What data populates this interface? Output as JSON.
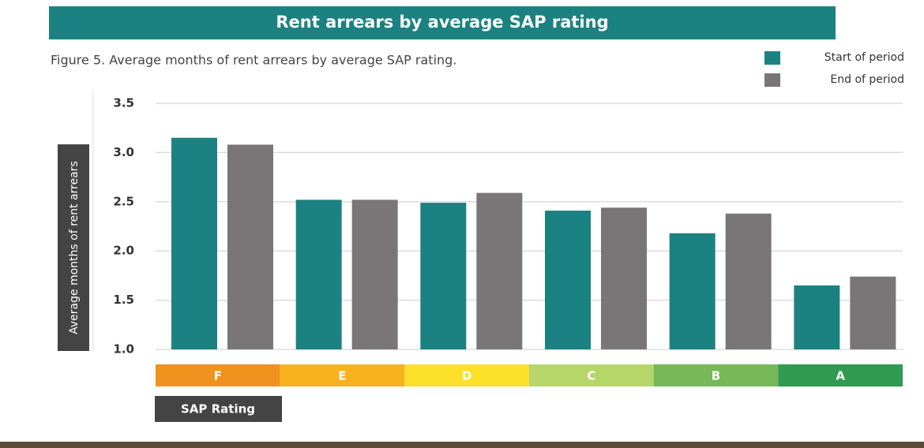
{
  "chart_data": {
    "type": "bar",
    "title": "Rent arrears by average SAP rating",
    "subtitle": "Figure 5. Average months of rent arrears by average SAP rating.",
    "y_label": "Average months of rent arrears",
    "x_label": "SAP Rating",
    "categories": [
      "F",
      "E",
      "D",
      "C",
      "B",
      "A"
    ],
    "category_colors": [
      "#f0921e",
      "#f7b21e",
      "#fde02a",
      "#b7d66a",
      "#77b859",
      "#2f9a50"
    ],
    "series": [
      {
        "name": "Start of period",
        "color": "#1b8281",
        "values": [
          3.15,
          2.52,
          2.49,
          2.41,
          2.18,
          1.65
        ]
      },
      {
        "name": "End of period",
        "color": "#7a7677",
        "values": [
          3.08,
          2.52,
          2.59,
          2.44,
          2.38,
          1.74
        ]
      }
    ],
    "ylim": [
      1,
      3.5
    ],
    "yticks": [
      {
        "value": 1,
        "label": "1.0"
      },
      1.5,
      {
        "value": 2,
        "label": "2.0"
      },
      2.5,
      {
        "value": 3,
        "label": "3.0"
      },
      3.5
    ],
    "grid": true,
    "legend": "top-right"
  }
}
